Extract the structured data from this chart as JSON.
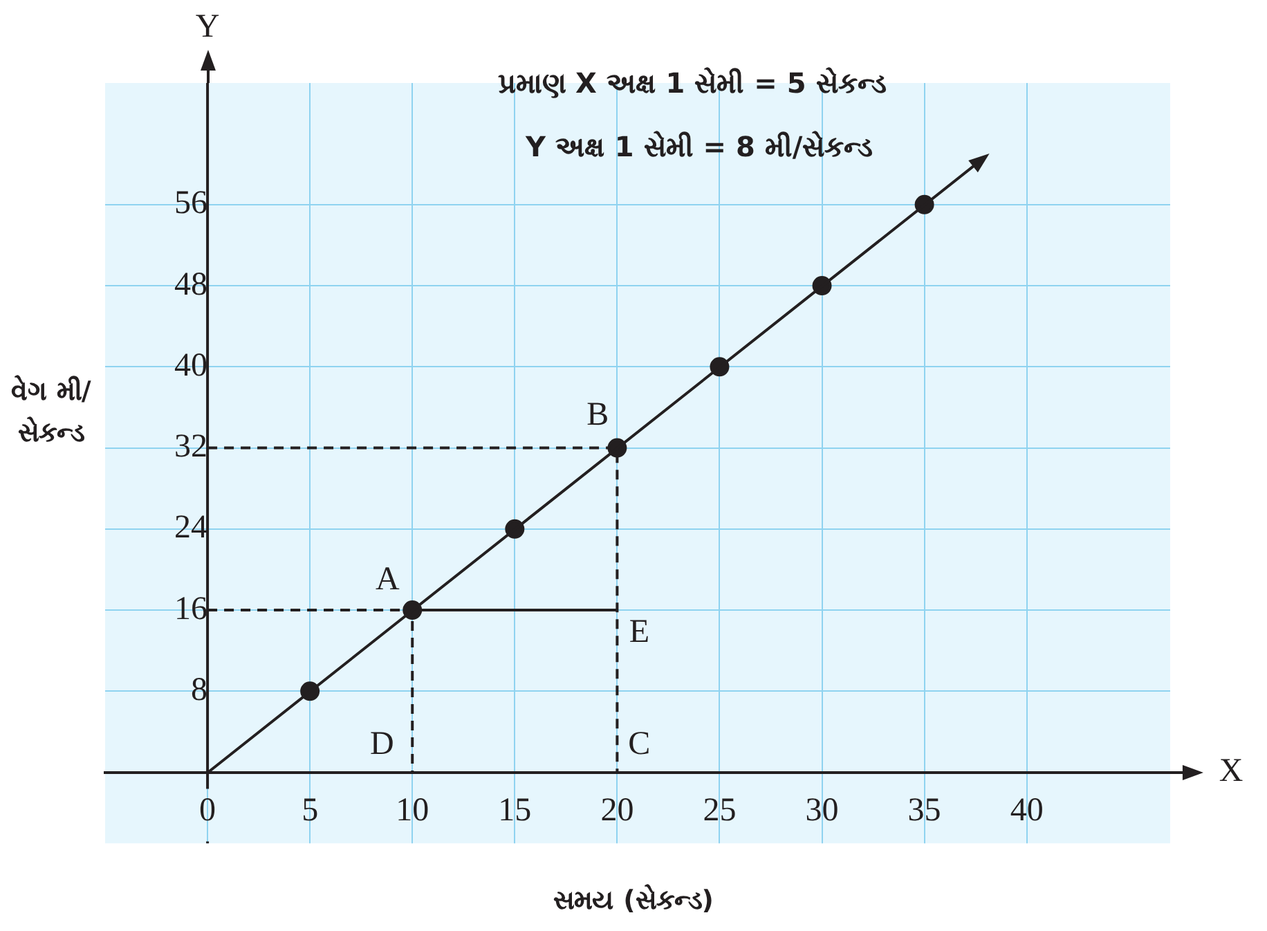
{
  "chart_data": {
    "type": "line",
    "xlabel": "સમય (સેકન્ડ)",
    "ylabel": "વેગ મી/ સેકન્ડ",
    "xlim": [
      -5,
      47
    ],
    "ylim": [
      -7,
      68
    ],
    "xticks": [
      0,
      5,
      10,
      15,
      20,
      25,
      30,
      35,
      40
    ],
    "yticks": [
      8,
      16,
      24,
      32,
      40,
      48,
      56
    ],
    "grid": true,
    "legend": false,
    "series": [
      {
        "type": "scatter",
        "x": [
          5,
          10,
          15,
          20,
          25,
          30,
          35
        ],
        "values": [
          8,
          16,
          24,
          32,
          40,
          48,
          56
        ],
        "color": "#231f20",
        "marker": "circle"
      },
      {
        "type": "line",
        "x": [
          0,
          10,
          10
        ],
        "values": [
          16,
          16,
          0
        ],
        "color": "#231f20",
        "marker": "none",
        "line_style": "dashed"
      },
      {
        "type": "line",
        "x": [
          0,
          20,
          20
        ],
        "values": [
          32,
          32,
          0
        ],
        "color": "#231f20",
        "marker": "none",
        "line_style": "dashed"
      },
      {
        "type": "line",
        "x": [
          10,
          20
        ],
        "values": [
          16,
          16
        ],
        "color": "#231f20",
        "marker": "none",
        "line_style": "solid"
      }
    ],
    "annotations": [
      "પ્રમાણ X અક્ષ 1 સેમી = 5 સેકન્ડ",
      "Y અક્ષ 1 સેમી = 8 મી/સેકન્ડ",
      "A",
      "B",
      "C",
      "D",
      "E",
      "X",
      "Y"
    ]
  }
}
